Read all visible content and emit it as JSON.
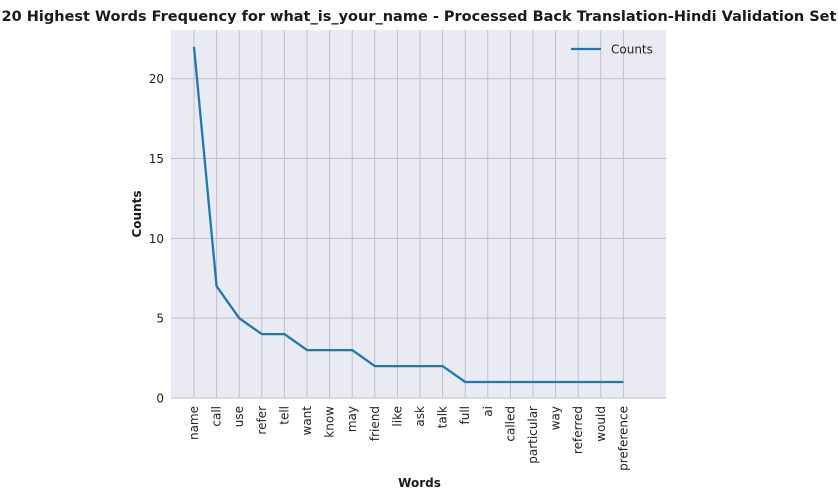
{
  "chart_data": {
    "type": "line",
    "title": "20 Highest Words Frequency for what_is_your_name - Processed Back Translation-Hindi Validation Set",
    "xlabel": "Words",
    "ylabel": "Counts",
    "categories": [
      "name",
      "call",
      "use",
      "refer",
      "tell",
      "want",
      "know",
      "may",
      "friend",
      "like",
      "ask",
      "talk",
      "full",
      "ai",
      "called",
      "particular",
      "way",
      "referred",
      "would",
      "preference"
    ],
    "series": [
      {
        "name": "Counts",
        "values": [
          22,
          7,
          5,
          4,
          4,
          3,
          3,
          3,
          2,
          2,
          2,
          2,
          1,
          1,
          1,
          1,
          1,
          1,
          1,
          1
        ]
      }
    ],
    "ylim": [
      0,
      23.05
    ],
    "yticks": [
      0,
      5,
      10,
      15,
      20
    ],
    "grid": true,
    "legend": "upper right",
    "colors": {
      "line": "#1f77b4",
      "background": "#eaeaf2",
      "grid": "#bfbfc6"
    }
  }
}
